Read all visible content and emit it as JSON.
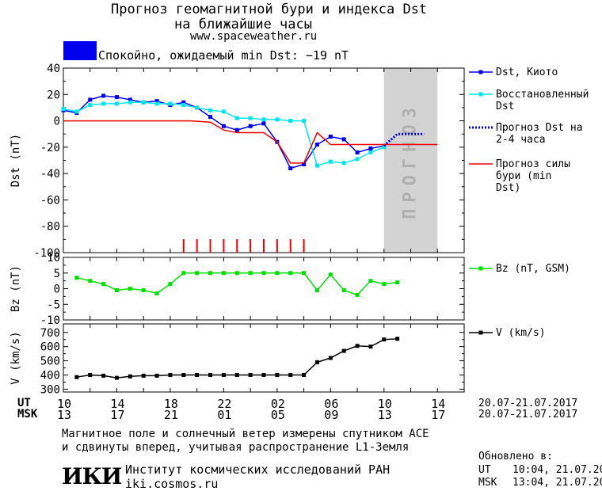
{
  "header": {
    "title_line1": "Прогноз геомагнитной бури и индекса Dst",
    "title_line2": "на ближайшие часы",
    "site": "www.spaceweather.ru",
    "status_text": "Спокойно, ожидаемый min Dst: −19 nT",
    "status_color": "#0000ee"
  },
  "chart_data": [
    {
      "type": "line",
      "panel": "dst",
      "ylabel": "Dst (nT)",
      "ylim": [
        -100,
        40
      ],
      "yticks": [
        40,
        20,
        0,
        -20,
        -40,
        -60,
        -80,
        -100
      ],
      "xlim_hours": [
        0,
        60
      ],
      "forecast_band_label": "ПРОГНОЗ",
      "forecast_band_x": [
        48,
        56
      ],
      "series": [
        {
          "name": "Dst, Киото",
          "color": "#0000ee",
          "marker": "square",
          "x": [
            0,
            2,
            4,
            6,
            8,
            10,
            12,
            14,
            16,
            18,
            20,
            22,
            24,
            26,
            28,
            30,
            32,
            34,
            36,
            38,
            40,
            42,
            44,
            46,
            48
          ],
          "values": [
            8,
            6,
            16,
            19,
            18,
            16,
            14,
            15,
            12,
            14,
            10,
            3,
            -4,
            -7,
            -4,
            -2,
            -16,
            -36,
            -33,
            -18,
            -12,
            -14,
            -24,
            -21,
            -19
          ]
        },
        {
          "name": "Восстановленный Dst",
          "color": "#00e5ee",
          "marker": "square",
          "x": [
            0,
            2,
            4,
            6,
            8,
            10,
            12,
            14,
            16,
            18,
            20,
            22,
            24,
            26,
            28,
            30,
            32,
            34,
            36,
            38,
            40,
            42,
            44,
            46,
            48
          ],
          "values": [
            9,
            7,
            12,
            13,
            13,
            14,
            14,
            13,
            13,
            12,
            10,
            8,
            7,
            2,
            2,
            1,
            1,
            0,
            0,
            -34,
            -31,
            -32,
            -29,
            -24,
            -20
          ]
        },
        {
          "name": "Прогноз Dst на 2-4 часа",
          "color": "#0000ee",
          "style": "dotted",
          "x": [
            48,
            50,
            52,
            54
          ],
          "values": [
            -19,
            -10,
            -10,
            -10
          ]
        },
        {
          "name": "Прогноз силы бури (min Dst)",
          "color": "#ee0000",
          "style": "solid",
          "x": [
            0,
            19,
            22,
            24,
            26,
            28,
            30,
            32,
            34,
            36,
            38,
            40,
            42,
            44,
            46,
            48,
            50,
            52,
            54,
            56
          ],
          "values": [
            0,
            0,
            -1,
            -7,
            -9,
            -9,
            -9,
            -16,
            -32,
            -32,
            -9,
            -18,
            -18,
            -18,
            -18,
            -18,
            -18,
            -18,
            -18,
            -18
          ]
        }
      ],
      "storm_marks_x": [
        18,
        20,
        22,
        24,
        26,
        28,
        30,
        32,
        34,
        36
      ]
    },
    {
      "type": "line",
      "panel": "bz",
      "ylabel": "Bz (nT)",
      "ylim": [
        -10,
        10
      ],
      "yticks": [
        10,
        5,
        0,
        -5,
        -10
      ],
      "series": [
        {
          "name": "Bz (nT, GSM)",
          "color": "#00e000",
          "marker": "square",
          "x": [
            2,
            4,
            6,
            8,
            10,
            12,
            14,
            16,
            18,
            20,
            22,
            24,
            26,
            28,
            30,
            32,
            34,
            36,
            38,
            40,
            42,
            44,
            46,
            48,
            50
          ],
          "values": [
            3.5,
            2.5,
            1.5,
            -0.5,
            0,
            -0.5,
            -1.5,
            1.5,
            5,
            5,
            5,
            5,
            5,
            5,
            5,
            5,
            5,
            5,
            -0.5,
            4.5,
            -0.5,
            -2,
            2.5,
            1.5,
            2
          ]
        }
      ]
    },
    {
      "type": "line",
      "panel": "v",
      "ylabel": "V (km/s)",
      "ylim": [
        280,
        760
      ],
      "yticks": [
        700,
        600,
        500,
        400,
        300
      ],
      "series": [
        {
          "name": "V (km/s)",
          "color": "#000000",
          "marker": "square",
          "x": [
            2,
            4,
            6,
            8,
            10,
            12,
            14,
            16,
            18,
            20,
            22,
            24,
            26,
            28,
            30,
            32,
            34,
            36,
            38,
            40,
            42,
            44,
            46,
            48,
            50
          ],
          "values": [
            385,
            400,
            395,
            380,
            390,
            395,
            395,
            400,
            400,
            400,
            400,
            400,
            400,
            400,
            400,
            400,
            400,
            400,
            490,
            520,
            570,
            605,
            600,
            650,
            655
          ]
        }
      ]
    }
  ],
  "axes": {
    "ut_label": "UT",
    "msk_label": "MSK",
    "ut_ticks": [
      "10",
      "14",
      "18",
      "22",
      "02",
      "06",
      "10",
      "14"
    ],
    "msk_ticks": [
      "13",
      "17",
      "21",
      "01",
      "05",
      "09",
      "13",
      "17"
    ],
    "ut_dates": "20.07-21.07.2017",
    "msk_dates": "20.07-21.07.2017"
  },
  "footer": {
    "note_line1": "Магнитное поле и солнечный ветер измерены спутником ACE",
    "note_line2": "и сдвинуты вперед, учитывая распространение L1-Земля",
    "logo_text": "ИКИ",
    "institute": "Институт космических исследований РАН",
    "institute_site": "iki.cosmos.ru",
    "updated_label": "Обновлено в:",
    "updated_ut_label": "UT",
    "updated_ut": "10:04, 21.07.2017",
    "updated_msk_label": "MSK",
    "updated_msk": "13:04, 21.07.2017"
  }
}
